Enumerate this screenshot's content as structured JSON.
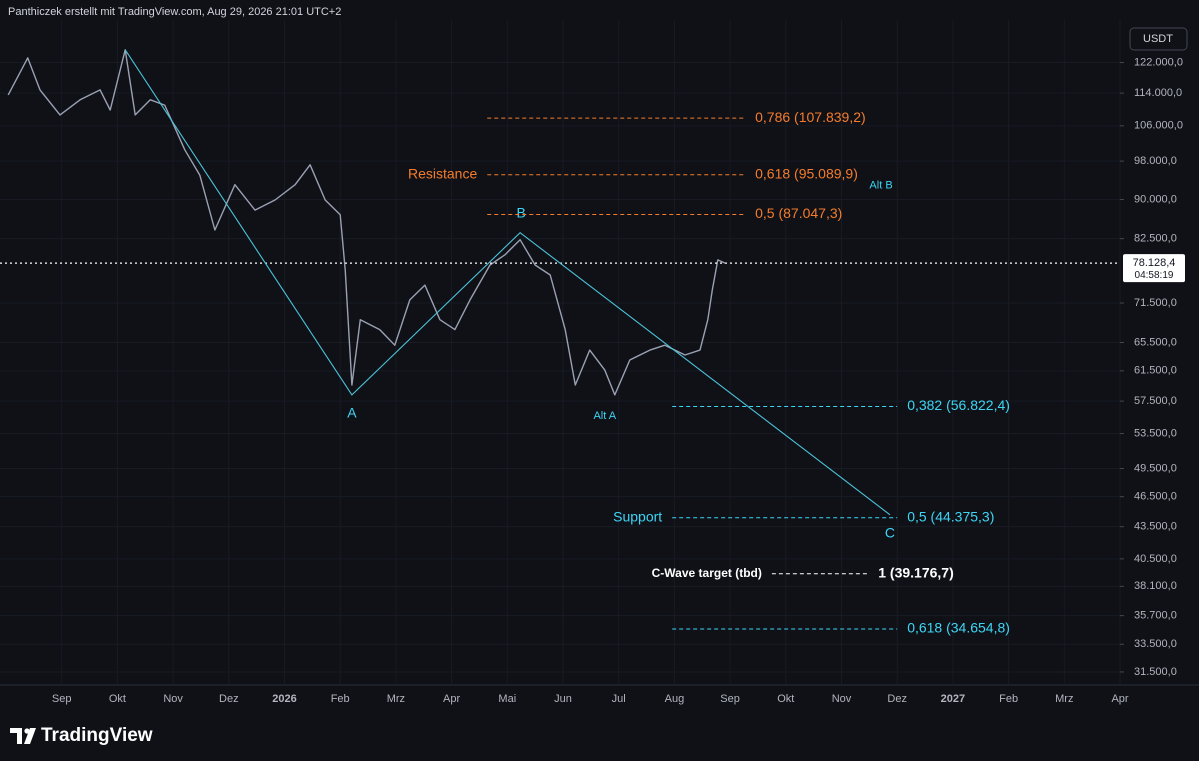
{
  "chart_data": {
    "type": "line",
    "title": "Panthiczek erstellt mit TradingView.com, Aug 29, 2026 21:01 UTC+2",
    "currency": "USDT",
    "logo": "TradingView",
    "log_scale": true,
    "grid": true,
    "color": "#9aa1b3",
    "xlim": [
      -1,
      19
    ],
    "ylim": [
      30600,
      134100
    ],
    "xticks": [
      {
        "value": 0,
        "label": "Sep"
      },
      {
        "value": 1,
        "label": "Okt"
      },
      {
        "value": 2,
        "label": "Nov"
      },
      {
        "value": 3,
        "label": "Dez"
      },
      {
        "value": 4,
        "label": "2026"
      },
      {
        "value": 5,
        "label": "Feb"
      },
      {
        "value": 6,
        "label": "Mrz"
      },
      {
        "value": 7,
        "label": "Apr"
      },
      {
        "value": 8,
        "label": "Mai"
      },
      {
        "value": 9,
        "label": "Jun"
      },
      {
        "value": 10,
        "label": "Jul"
      },
      {
        "value": 11,
        "label": "Aug"
      },
      {
        "value": 12,
        "label": "Sep"
      },
      {
        "value": 13,
        "label": "Okt"
      },
      {
        "value": 14,
        "label": "Nov"
      },
      {
        "value": 15,
        "label": "Dez"
      },
      {
        "value": 16,
        "label": "2027"
      },
      {
        "value": 17,
        "label": "Feb"
      },
      {
        "value": 18,
        "label": "Mrz"
      },
      {
        "value": 19,
        "label": "Apr"
      }
    ],
    "yticks": [
      {
        "value": 122000,
        "label": "122.000,0"
      },
      {
        "value": 114000,
        "label": "114.000,0"
      },
      {
        "value": 106000,
        "label": "106.000,0"
      },
      {
        "value": 98000,
        "label": "98.000,0"
      },
      {
        "value": 90000,
        "label": "90.000,0"
      },
      {
        "value": 82500,
        "label": "82.500,0"
      },
      {
        "value": 71500,
        "label": "71.500,0"
      },
      {
        "value": 65500,
        "label": "65.500,0"
      },
      {
        "value": 61500,
        "label": "61.500,0"
      },
      {
        "value": 57500,
        "label": "57.500,0"
      },
      {
        "value": 53500,
        "label": "53.500,0"
      },
      {
        "value": 49500,
        "label": "49.500,0"
      },
      {
        "value": 46500,
        "label": "46.500,0"
      },
      {
        "value": 43500,
        "label": "43.500,0"
      },
      {
        "value": 40500,
        "label": "40.500,0"
      },
      {
        "value": 38100,
        "label": "38.100,0"
      },
      {
        "value": 35700,
        "label": "35.700,0"
      },
      {
        "value": 33500,
        "label": "33.500,0"
      },
      {
        "value": 31500,
        "label": "31.500,0"
      }
    ],
    "x": [
      -0.96,
      -0.61,
      -0.39,
      -0.03,
      0.33,
      0.69,
      0.87,
      1.14,
      1.32,
      1.59,
      1.85,
      2.21,
      2.48,
      2.75,
      3.11,
      3.47,
      3.83,
      4.19,
      4.46,
      4.73,
      5.0,
      5.09,
      5.21,
      5.36,
      5.71,
      5.98,
      6.25,
      6.52,
      6.79,
      7.06,
      7.33,
      7.69,
      7.96,
      8.23,
      8.5,
      8.77,
      9.04,
      9.22,
      9.48,
      9.75,
      9.93,
      10.2,
      10.56,
      10.83,
      11.19,
      11.46,
      11.6,
      11.68,
      11.78,
      11.91
    ],
    "values": [
      113550,
      123260,
      114800,
      108600,
      112300,
      114800,
      109800,
      125500,
      108600,
      112300,
      111000,
      100500,
      95000,
      84100,
      93000,
      87900,
      89900,
      93000,
      97200,
      89900,
      87000,
      77000,
      59600,
      68900,
      67400,
      65100,
      72000,
      74400,
      68900,
      67400,
      72000,
      77800,
      79600,
      82300,
      77800,
      76100,
      67400,
      59600,
      64400,
      61600,
      58300,
      63000,
      64400,
      65100,
      63700,
      64400,
      68900,
      73600,
      78700,
      78128.4
    ],
    "last_price": {
      "value": 78128.4,
      "label": "78.128,4"
    },
    "countdown": "04:58:19",
    "wave_path": {
      "x": [
        1.14,
        5.21,
        8.23,
        14.87
      ],
      "values": [
        125500,
        58300,
        83600,
        44660
      ]
    },
    "wave_labels": [
      {
        "text": "A",
        "x": 5.21,
        "value": 55900
      },
      {
        "text": "B",
        "x": 8.25,
        "value": 87200
      },
      {
        "text": "C",
        "x": 14.87,
        "value": 42800
      },
      {
        "text": "Alt A",
        "x": 9.75,
        "value": 55600
      },
      {
        "text": "Alt B",
        "x": 14.71,
        "value": 92800
      }
    ],
    "fib_levels": [
      {
        "label": "0,786 (107.839,2)",
        "value": 107839.2,
        "color": "#f57c2c",
        "x": [
          7.64,
          12.27
        ]
      },
      {
        "prefix": "Resistance",
        "label": "0,618 (95.089,9)",
        "value": 95089.9,
        "color": "#f57c2c",
        "x": [
          7.64,
          12.27
        ]
      },
      {
        "label": "0,5 (87.047,3)",
        "value": 87047.3,
        "color": "#f57c2c",
        "x": [
          7.64,
          12.27
        ]
      },
      {
        "label": "0,382 (56.822,4)",
        "value": 56822.4,
        "color": "#3ed5f5",
        "x": [
          10.96,
          15.0
        ]
      },
      {
        "prefix": "Support",
        "label": "0,5 (44.375,3)",
        "value": 44375.3,
        "color": "#3ed5f5",
        "x": [
          10.96,
          15.0
        ]
      },
      {
        "prefix": "C-Wave target (tbd)",
        "label": "1 (39.176,7)",
        "value": 39176.7,
        "color": "#ffffff",
        "x": [
          12.75,
          14.48
        ]
      },
      {
        "label": "0,618 (34.654,8)",
        "value": 34654.8,
        "color": "#3ed5f5",
        "x": [
          10.96,
          15.0
        ]
      }
    ]
  }
}
